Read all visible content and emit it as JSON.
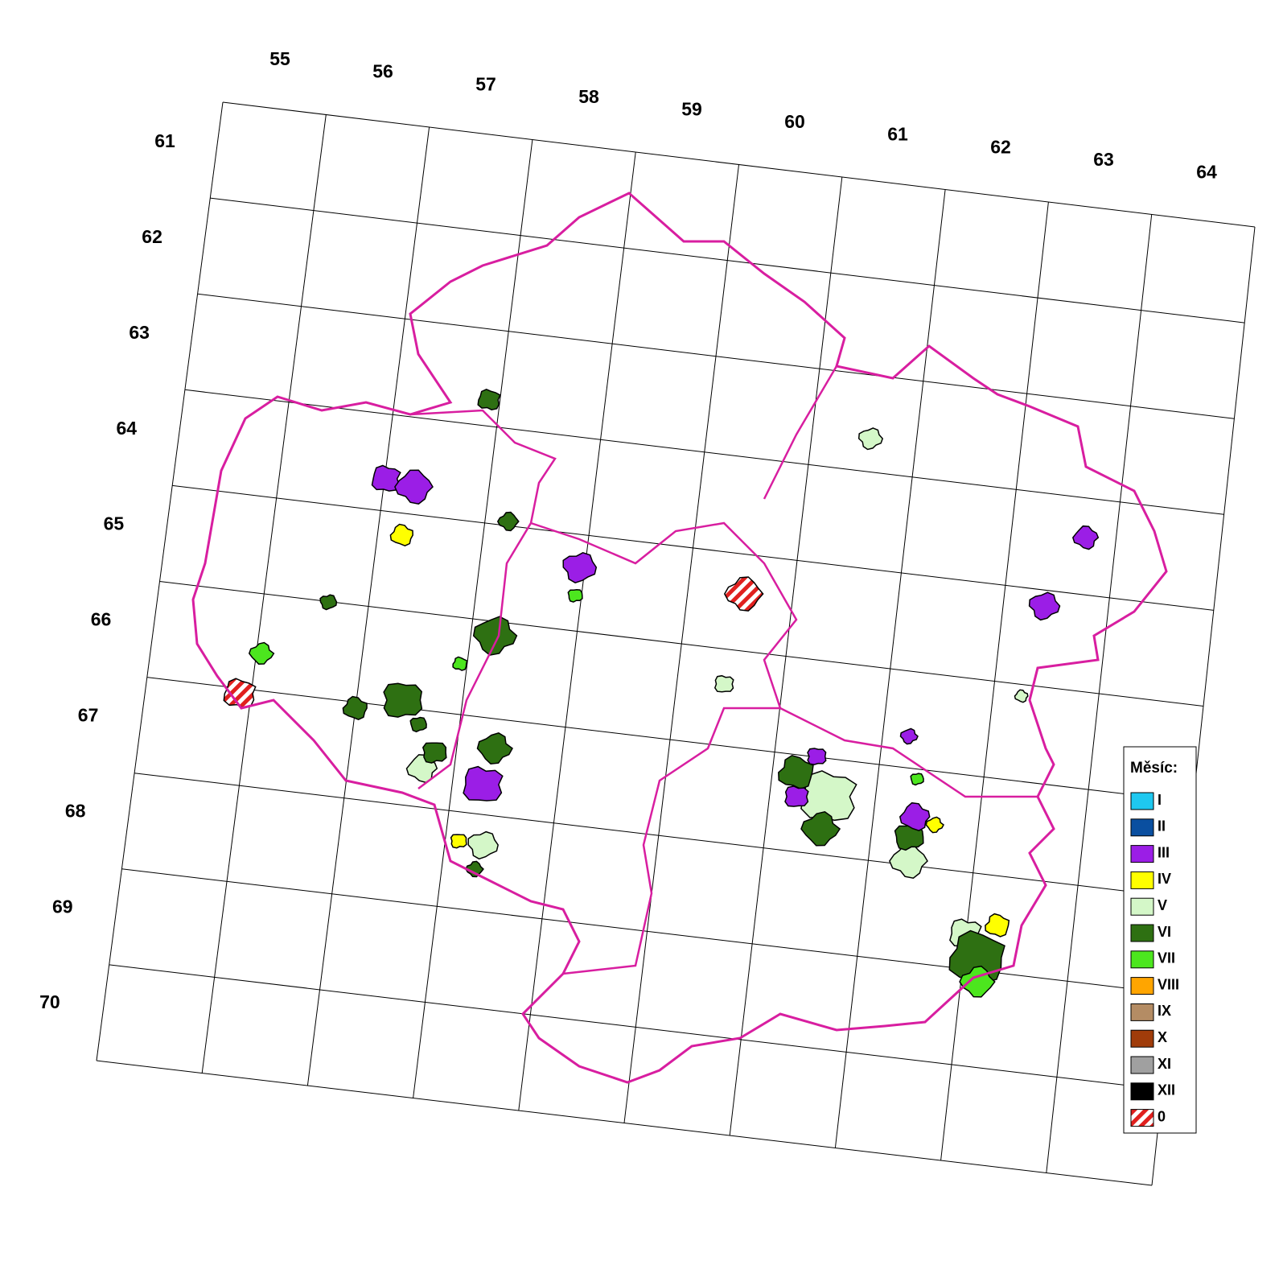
{
  "map": {
    "column_labels": [
      55,
      56,
      57,
      58,
      59,
      60,
      61,
      62,
      63,
      64
    ],
    "row_labels": [
      61,
      62,
      63,
      64,
      65,
      66,
      67,
      68,
      69,
      70
    ],
    "legend": {
      "title": "Měsíc:",
      "items": [
        {
          "label": "I",
          "color": "#1ec8f0"
        },
        {
          "label": "II",
          "color": "#0a4fa0"
        },
        {
          "label": "III",
          "color": "#9b1ee6"
        },
        {
          "label": "IV",
          "color": "#ffff00"
        },
        {
          "label": "V",
          "color": "#d4f7c8"
        },
        {
          "label": "VI",
          "color": "#2e7012"
        },
        {
          "label": "VII",
          "color": "#4ce61e"
        },
        {
          "label": "VIII",
          "color": "#ffa500"
        },
        {
          "label": "IX",
          "color": "#b48c64"
        },
        {
          "label": "X",
          "color": "#a03c0a"
        },
        {
          "label": "XI",
          "color": "#a0a0a0"
        },
        {
          "label": "XII",
          "color": "#000000"
        },
        {
          "label": "0",
          "color": "#e0201e",
          "hatched": true
        }
      ]
    }
  }
}
